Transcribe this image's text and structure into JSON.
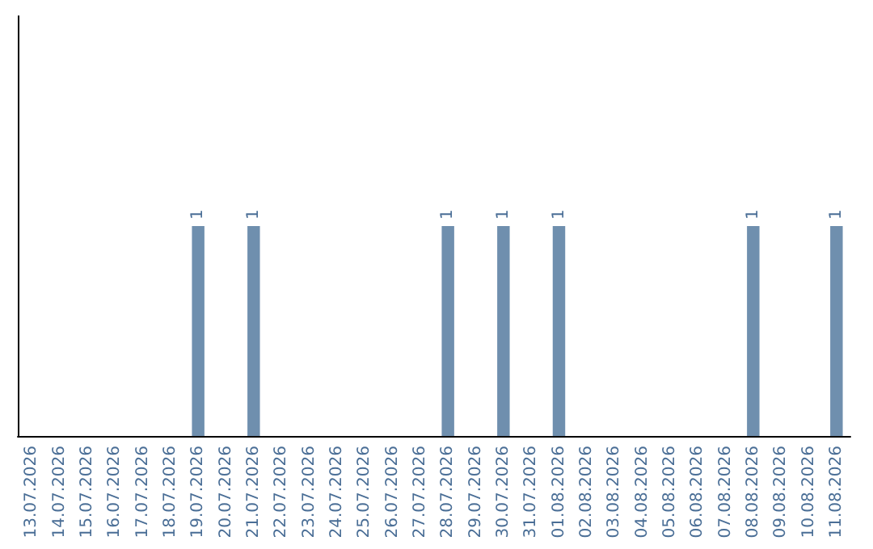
{
  "chart_data": {
    "type": "bar",
    "categories": [
      "13.07.2026",
      "14.07.2026",
      "15.07.2026",
      "16.07.2026",
      "17.07.2026",
      "18.07.2026",
      "19.07.2026",
      "20.07.2026",
      "21.07.2026",
      "22.07.2026",
      "23.07.2026",
      "24.07.2026",
      "25.07.2026",
      "26.07.2026",
      "27.07.2026",
      "28.07.2026",
      "29.07.2026",
      "30.07.2026",
      "31.07.2026",
      "01.08.2026",
      "02.08.2026",
      "03.08.2026",
      "04.08.2026",
      "05.08.2026",
      "06.08.2026",
      "07.08.2026",
      "08.08.2026",
      "09.08.2026",
      "10.08.2026",
      "11.08.2026"
    ],
    "values": [
      0,
      0,
      0,
      0,
      0,
      0,
      1,
      0,
      1,
      0,
      0,
      0,
      0,
      0,
      0,
      1,
      0,
      1,
      0,
      1,
      0,
      0,
      0,
      0,
      0,
      0,
      1,
      0,
      0,
      1
    ],
    "value_labels": [
      null,
      null,
      null,
      null,
      null,
      null,
      "1",
      null,
      "1",
      null,
      null,
      null,
      null,
      null,
      null,
      "1",
      null,
      "1",
      null,
      "1",
      null,
      null,
      null,
      null,
      null,
      null,
      "1",
      null,
      null,
      "1"
    ],
    "color": "#6f8fae",
    "ylim": [
      0,
      2
    ],
    "grid": false,
    "tick_labels": "x"
  }
}
